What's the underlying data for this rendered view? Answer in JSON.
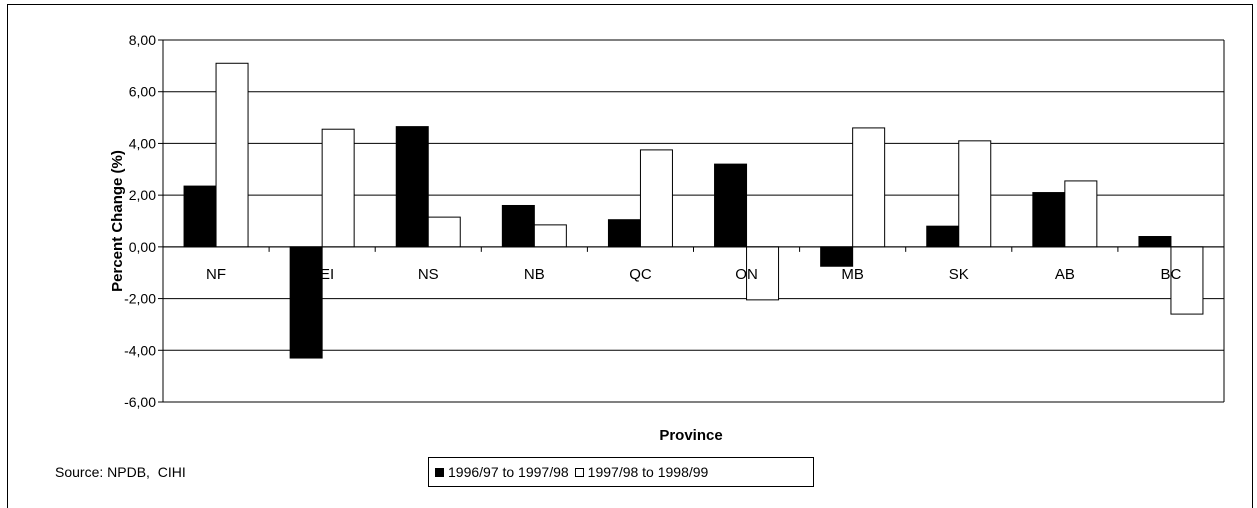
{
  "chart_data": {
    "type": "bar",
    "categories": [
      "NF",
      "PEI",
      "NS",
      "NB",
      "QC",
      "ON",
      "MB",
      "SK",
      "AB",
      "BC"
    ],
    "series": [
      {
        "name": "1996/97 to 1997/98",
        "color": "#000000",
        "values": [
          2.35,
          -4.3,
          4.65,
          1.6,
          1.05,
          3.2,
          -0.75,
          0.8,
          2.1,
          0.4
        ]
      },
      {
        "name": "1997/98 to 1998/99",
        "color": "#ffffff",
        "values": [
          7.1,
          4.55,
          1.15,
          0.85,
          3.75,
          -2.05,
          4.6,
          4.1,
          2.55,
          -2.6
        ]
      }
    ],
    "xlabel": "Province",
    "ylabel": "Percent Change (%)",
    "ylim": [
      -6,
      8
    ],
    "yticks": [
      "-6,00",
      "-4,00",
      "-2,00",
      "0,00",
      "2,00",
      "4,00",
      "6,00",
      "8,00"
    ],
    "grid": true,
    "legend_position": "bottom"
  },
  "source_note": "Source: NPDB,  CIHI"
}
